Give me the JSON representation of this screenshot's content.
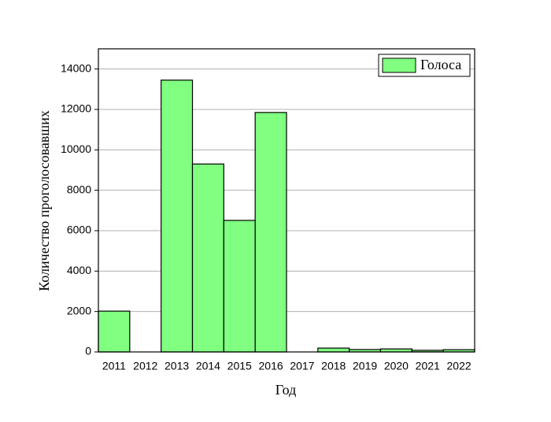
{
  "chart_data": {
    "type": "bar",
    "x_label": "Год",
    "y_label": "Количество проголосовавших",
    "categories": [
      "2011",
      "2012",
      "2013",
      "2014",
      "2015",
      "2016",
      "2017",
      "2018",
      "2019",
      "2020",
      "2021",
      "2022"
    ],
    "series": [
      {
        "name": "Голоса",
        "color": "#80ff80",
        "values": [
          2020,
          0,
          13450,
          9300,
          6510,
          11850,
          0,
          190,
          120,
          150,
          80,
          110
        ]
      }
    ],
    "ylim": [
      0,
      15000
    ],
    "yticks": [
      0,
      2000,
      4000,
      6000,
      8000,
      10000,
      12000,
      14000
    ],
    "grid": true,
    "legend": "top-right"
  }
}
